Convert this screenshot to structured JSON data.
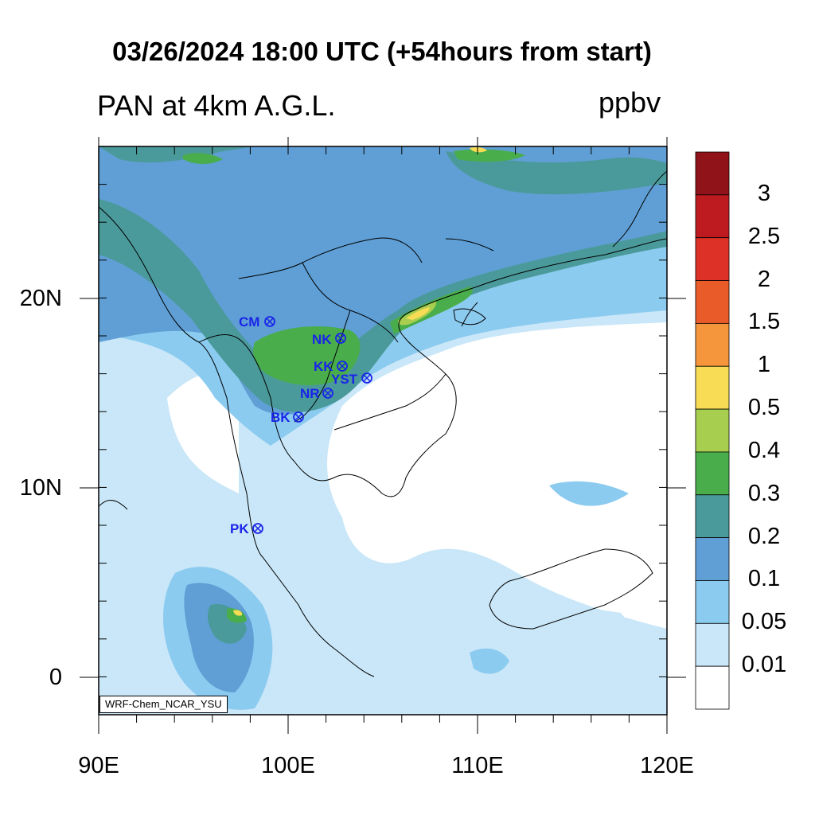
{
  "title": "03/26/2024 18:00 UTC (+54hours from start)",
  "subtitle": "PAN at 4km A.G.L.",
  "units": "ppbv",
  "credit": "WRF-Chem_NCAR_YSU",
  "axes": {
    "x_ticks": [
      "90E",
      "100E",
      "110E",
      "120E"
    ],
    "y_ticks": [
      "20N",
      "10N",
      "0"
    ]
  },
  "colorbar": {
    "labels": [
      "3",
      "2.5",
      "2",
      "1.5",
      "1",
      "0.5",
      "0.4",
      "0.3",
      "0.2",
      "0.1",
      "0.05",
      "0.01"
    ],
    "colors": [
      "#8f1319",
      "#be1b20",
      "#dd3127",
      "#ea5b2a",
      "#f6963c",
      "#f8dc55",
      "#a8ce4f",
      "#49ad4c",
      "#4b9a9b",
      "#5f9fd5",
      "#8ccbf0",
      "#c9e7f8",
      "#ffffff"
    ]
  },
  "stations": [
    {
      "name": "CM"
    },
    {
      "name": "NK"
    },
    {
      "name": "KK"
    },
    {
      "name": "YST"
    },
    {
      "name": "NR"
    },
    {
      "name": "BK"
    },
    {
      "name": "PK"
    }
  ]
}
